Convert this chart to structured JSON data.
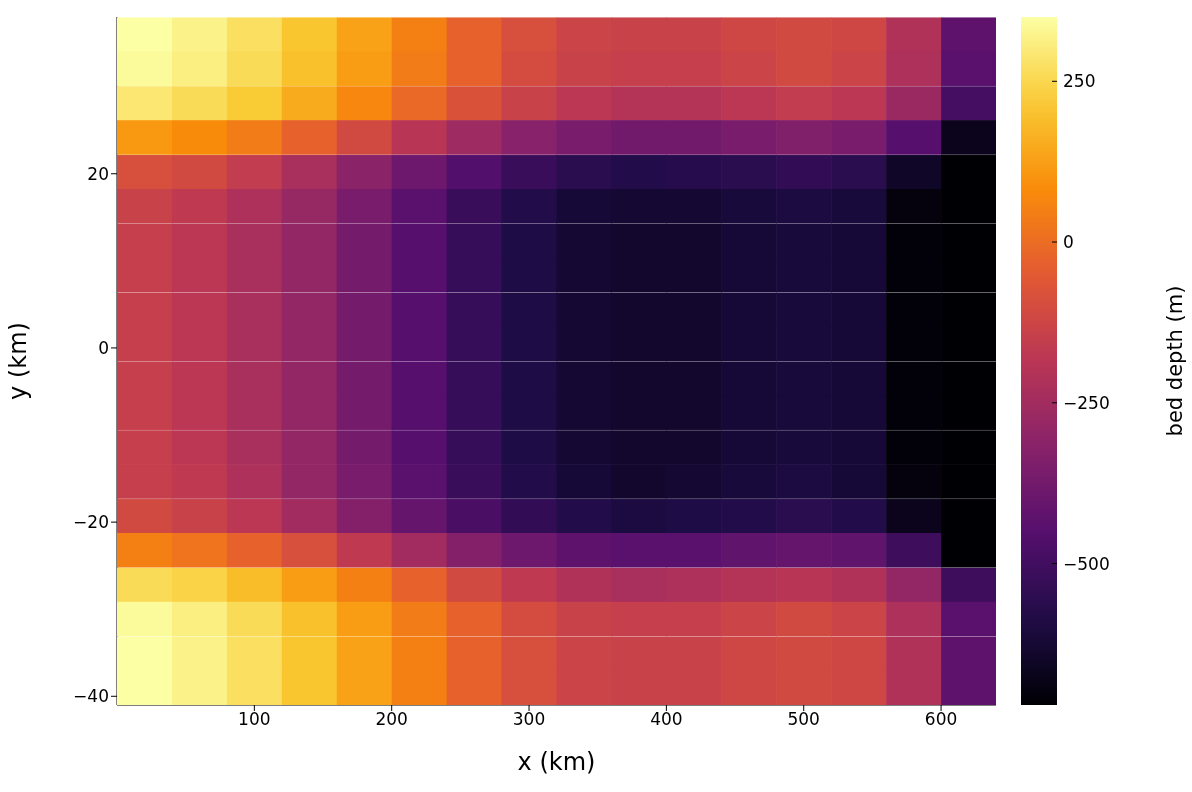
{
  "chart_data": {
    "type": "heatmap",
    "xlabel": "x (km)",
    "ylabel": "y (km)",
    "clabel": "bed depth (m)",
    "x": [
      20,
      60,
      100,
      140,
      180,
      220,
      260,
      300,
      340,
      380,
      420,
      460,
      500,
      540,
      580,
      620
    ],
    "y": [
      36,
      32.1,
      28.1,
      24.2,
      20.2,
      16.3,
      12.3,
      8.4,
      4.4,
      0.5,
      -3.5,
      -7.4,
      -11.4,
      -15.3,
      -19.3,
      -23.2,
      -27.2,
      -31.1,
      -35.1,
      -39
    ],
    "xlim": [
      0,
      640
    ],
    "ylim": [
      -41,
      38
    ],
    "xticks": [
      100,
      200,
      300,
      400,
      500,
      600
    ],
    "yticks": [
      {
        "value": -40,
        "label": "−40"
      },
      {
        "value": -20,
        "label": "−20"
      },
      0,
      20
    ],
    "clim": [
      -720,
      350
    ],
    "cticks": [
      {
        "value": -500,
        "label": "−500"
      },
      {
        "value": -250,
        "label": "−250"
      },
      0,
      250
    ],
    "cells": [
      [
        350,
        320,
        270,
        210,
        130,
        50,
        -30,
        -90,
        -130,
        -140,
        -140,
        -120,
        -110,
        -120,
        -210,
        -430
      ],
      [
        340,
        310,
        260,
        200,
        120,
        40,
        -30,
        -100,
        -140,
        -150,
        -150,
        -130,
        -110,
        -130,
        -220,
        -440
      ],
      [
        290,
        260,
        220,
        150,
        70,
        -10,
        -80,
        -140,
        -180,
        -200,
        -200,
        -180,
        -160,
        -180,
        -270,
        -490
      ],
      [
        110,
        80,
        40,
        -30,
        -110,
        -190,
        -260,
        -320,
        -360,
        -380,
        -380,
        -360,
        -340,
        -360,
        -450,
        -670
      ],
      [
        -90,
        -110,
        -160,
        -230,
        -310,
        -390,
        -460,
        -520,
        -560,
        -580,
        -570,
        -560,
        -540,
        -560,
        -650,
        -720
      ],
      [
        -140,
        -170,
        -220,
        -280,
        -360,
        -440,
        -520,
        -580,
        -620,
        -630,
        -630,
        -610,
        -600,
        -610,
        -700,
        -720
      ],
      [
        -150,
        -180,
        -230,
        -290,
        -370,
        -450,
        -530,
        -590,
        -630,
        -640,
        -640,
        -620,
        -610,
        -620,
        -710,
        -720
      ],
      [
        -150,
        -180,
        -230,
        -290,
        -370,
        -450,
        -530,
        -590,
        -630,
        -640,
        -640,
        -620,
        -610,
        -620,
        -710,
        -720
      ],
      [
        -150,
        -180,
        -230,
        -290,
        -370,
        -450,
        -530,
        -590,
        -630,
        -640,
        -640,
        -620,
        -610,
        -620,
        -710,
        -720
      ],
      [
        -150,
        -180,
        -230,
        -290,
        -370,
        -450,
        -530,
        -590,
        -630,
        -640,
        -640,
        -620,
        -610,
        -620,
        -710,
        -720
      ],
      [
        -150,
        -180,
        -230,
        -290,
        -370,
        -450,
        -530,
        -590,
        -630,
        -640,
        -640,
        -620,
        -610,
        -620,
        -710,
        -720
      ],
      [
        -150,
        -180,
        -230,
        -290,
        -370,
        -450,
        -530,
        -590,
        -630,
        -640,
        -640,
        -620,
        -610,
        -620,
        -710,
        -720
      ],
      [
        -150,
        -180,
        -230,
        -290,
        -370,
        -450,
        -530,
        -590,
        -630,
        -640,
        -640,
        -620,
        -610,
        -620,
        -710,
        -720
      ],
      [
        -150,
        -170,
        -220,
        -290,
        -360,
        -440,
        -520,
        -580,
        -620,
        -640,
        -630,
        -610,
        -600,
        -620,
        -700,
        -720
      ],
      [
        -110,
        -140,
        -180,
        -250,
        -330,
        -410,
        -480,
        -540,
        -580,
        -600,
        -590,
        -580,
        -560,
        -580,
        -670,
        -720
      ],
      [
        50,
        20,
        -30,
        -90,
        -170,
        -250,
        -330,
        -390,
        -430,
        -440,
        -440,
        -420,
        -410,
        -420,
        -510,
        -720
      ],
      [
        260,
        240,
        190,
        120,
        50,
        -30,
        -110,
        -170,
        -210,
        -230,
        -220,
        -200,
        -190,
        -210,
        -290,
        -510
      ],
      [
        340,
        310,
        260,
        200,
        120,
        40,
        -30,
        -100,
        -140,
        -150,
        -150,
        -130,
        -110,
        -130,
        -220,
        -440
      ],
      [
        350,
        320,
        270,
        210,
        130,
        50,
        -30,
        -90,
        -130,
        -140,
        -140,
        -120,
        -110,
        -120,
        -210,
        -430
      ],
      [
        350,
        320,
        270,
        210,
        130,
        50,
        -30,
        -90,
        -130,
        -140,
        -140,
        -120,
        -110,
        -120,
        -210,
        -430
      ]
    ]
  }
}
